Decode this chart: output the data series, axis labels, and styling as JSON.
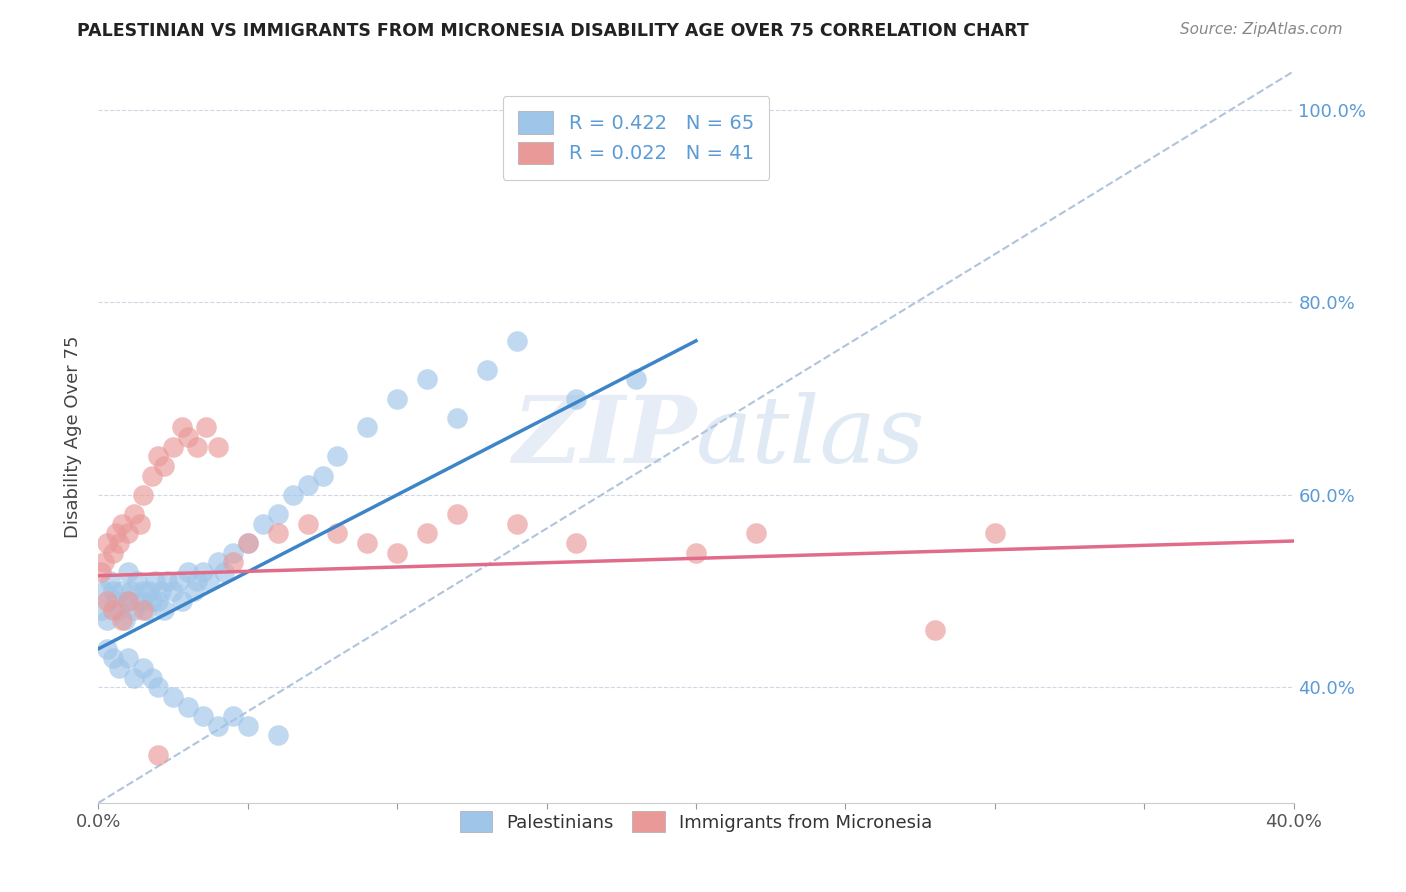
{
  "title": "PALESTINIAN VS IMMIGRANTS FROM MICRONESIA DISABILITY AGE OVER 75 CORRELATION CHART",
  "source": "Source: ZipAtlas.com",
  "ylabel": "Disability Age Over 75",
  "xlim": [
    0.0,
    0.4
  ],
  "ylim": [
    0.28,
    1.04
  ],
  "ytick_positions": [
    0.4,
    0.6,
    0.8,
    1.0
  ],
  "ytick_labels": [
    "40.0%",
    "60.0%",
    "80.0%",
    "100.0%"
  ],
  "xtick_positions": [
    0.0,
    0.05,
    0.1,
    0.15,
    0.2,
    0.25,
    0.3,
    0.35,
    0.4
  ],
  "xtick_labels": [
    "0.0%",
    "",
    "",
    "",
    "",
    "",
    "",
    "",
    "40.0%"
  ],
  "legend_labels": [
    "Palestinians",
    "Immigrants from Micronesia"
  ],
  "r_blue": "0.422",
  "n_blue": "65",
  "r_pink": "0.022",
  "n_pink": "41",
  "blue_color": "#9fc5e8",
  "pink_color": "#ea9999",
  "blue_line_color": "#3d85c8",
  "pink_line_color": "#e06c8a",
  "ref_line_color": "#b0c4de",
  "grid_color": "#d0d8e8",
  "background_color": "#ffffff",
  "watermark_zip": "ZIP",
  "watermark_atlas": "atlas",
  "blue_x": [
    0.001,
    0.002,
    0.003,
    0.004,
    0.005,
    0.006,
    0.007,
    0.008,
    0.009,
    0.01,
    0.01,
    0.011,
    0.012,
    0.013,
    0.014,
    0.015,
    0.016,
    0.017,
    0.018,
    0.019,
    0.02,
    0.021,
    0.022,
    0.023,
    0.025,
    0.027,
    0.028,
    0.03,
    0.032,
    0.033,
    0.035,
    0.037,
    0.04,
    0.042,
    0.045,
    0.05,
    0.055,
    0.06,
    0.065,
    0.07,
    0.075,
    0.08,
    0.09,
    0.1,
    0.11,
    0.12,
    0.13,
    0.14,
    0.16,
    0.18,
    0.003,
    0.005,
    0.007,
    0.01,
    0.012,
    0.015,
    0.018,
    0.02,
    0.025,
    0.03,
    0.035,
    0.04,
    0.045,
    0.05,
    0.06
  ],
  "blue_y": [
    0.48,
    0.5,
    0.47,
    0.51,
    0.5,
    0.49,
    0.48,
    0.5,
    0.47,
    0.49,
    0.52,
    0.5,
    0.48,
    0.51,
    0.49,
    0.5,
    0.48,
    0.5,
    0.49,
    0.51,
    0.49,
    0.5,
    0.48,
    0.51,
    0.5,
    0.51,
    0.49,
    0.52,
    0.5,
    0.51,
    0.52,
    0.51,
    0.53,
    0.52,
    0.54,
    0.55,
    0.57,
    0.58,
    0.6,
    0.61,
    0.62,
    0.64,
    0.67,
    0.7,
    0.72,
    0.68,
    0.73,
    0.76,
    0.7,
    0.72,
    0.44,
    0.43,
    0.42,
    0.43,
    0.41,
    0.42,
    0.41,
    0.4,
    0.39,
    0.38,
    0.37,
    0.36,
    0.37,
    0.36,
    0.35
  ],
  "pink_x": [
    0.001,
    0.002,
    0.003,
    0.005,
    0.006,
    0.007,
    0.008,
    0.01,
    0.012,
    0.014,
    0.015,
    0.018,
    0.02,
    0.022,
    0.025,
    0.028,
    0.03,
    0.033,
    0.036,
    0.04,
    0.045,
    0.05,
    0.06,
    0.07,
    0.08,
    0.09,
    0.1,
    0.11,
    0.12,
    0.14,
    0.16,
    0.2,
    0.22,
    0.28,
    0.3,
    0.003,
    0.005,
    0.008,
    0.01,
    0.015,
    0.02
  ],
  "pink_y": [
    0.52,
    0.53,
    0.55,
    0.54,
    0.56,
    0.55,
    0.57,
    0.56,
    0.58,
    0.57,
    0.6,
    0.62,
    0.64,
    0.63,
    0.65,
    0.67,
    0.66,
    0.65,
    0.67,
    0.65,
    0.53,
    0.55,
    0.56,
    0.57,
    0.56,
    0.55,
    0.54,
    0.56,
    0.58,
    0.57,
    0.55,
    0.54,
    0.56,
    0.46,
    0.56,
    0.49,
    0.48,
    0.47,
    0.49,
    0.48,
    0.33
  ],
  "blue_line_x": [
    0.0,
    0.2
  ],
  "blue_line_y": [
    0.44,
    0.76
  ],
  "pink_line_x": [
    0.0,
    0.4
  ],
  "pink_line_y": [
    0.516,
    0.552
  ],
  "ref_line_x": [
    0.0,
    0.4
  ],
  "ref_line_y": [
    0.28,
    1.04
  ]
}
